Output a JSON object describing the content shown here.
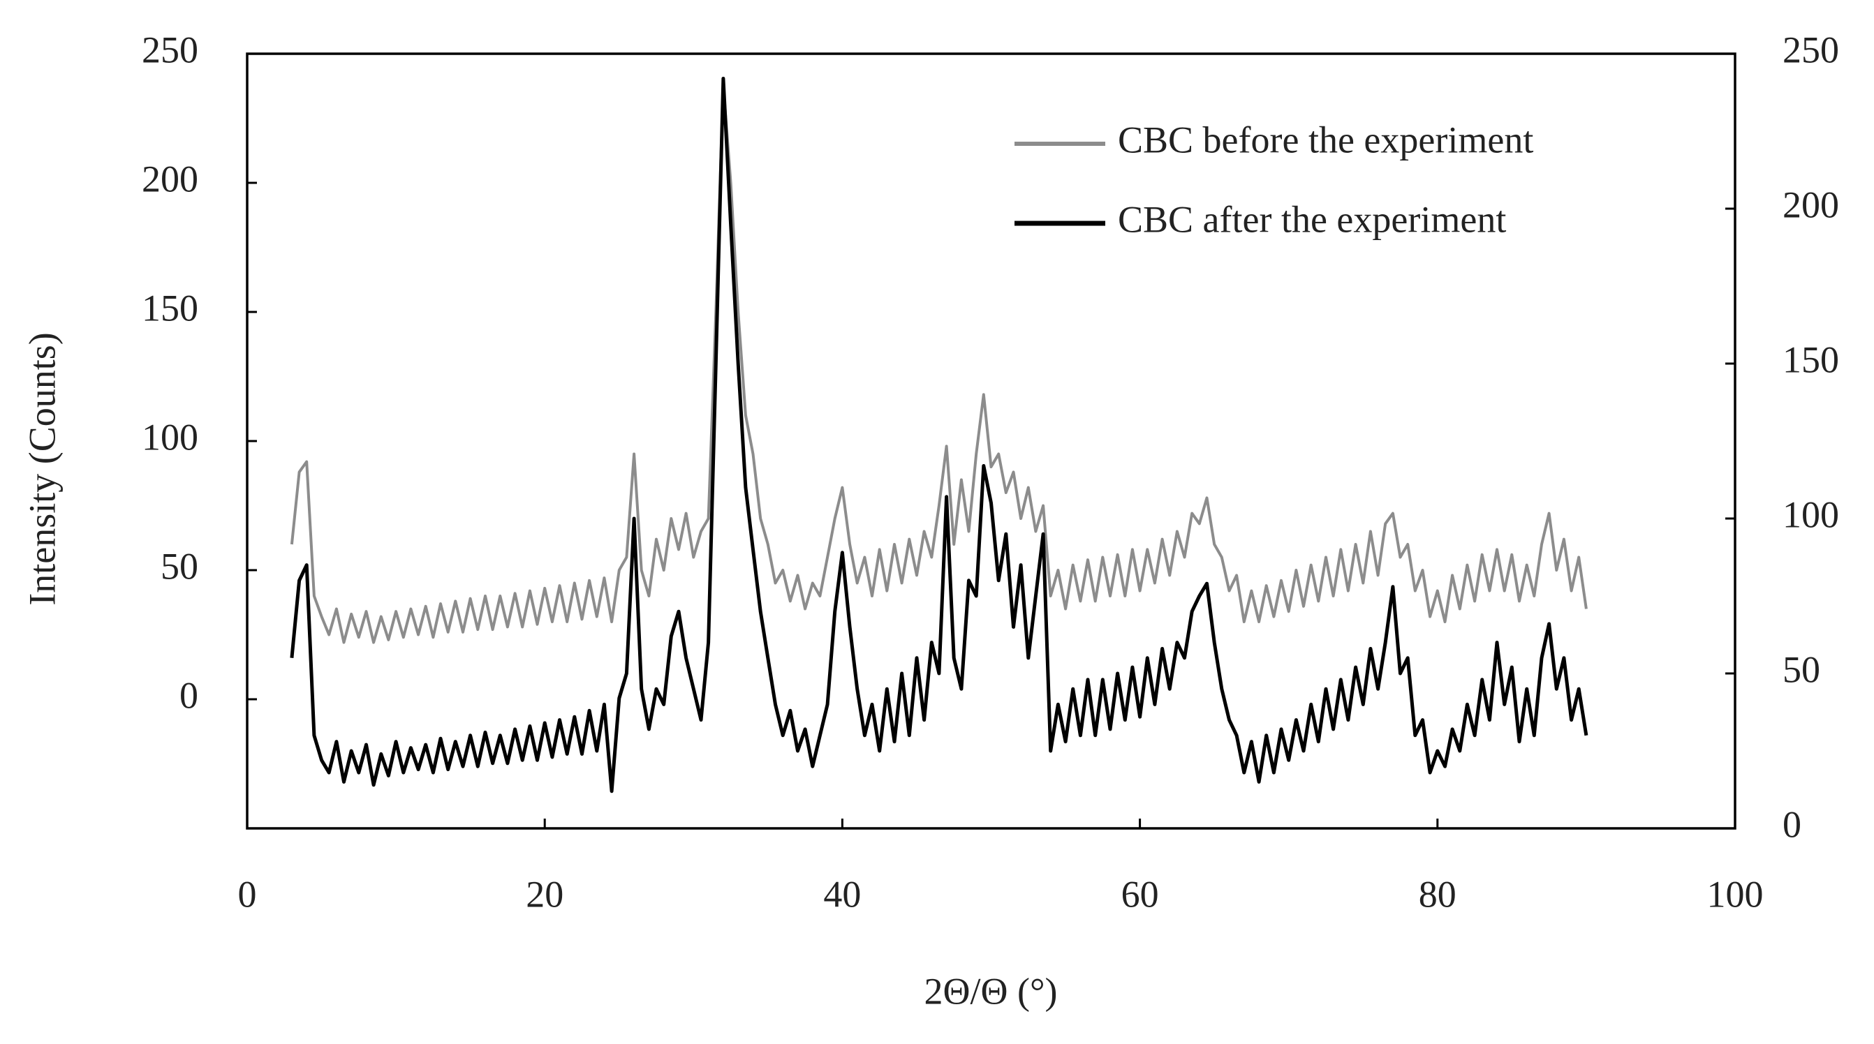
{
  "chart_data": {
    "type": "line",
    "xlabel": "2Θ/Θ (°)",
    "ylabel": "Intensity (Counts)",
    "x": [
      3,
      3.5,
      4,
      4.5,
      5,
      5.5,
      6,
      6.5,
      7,
      7.5,
      8,
      8.5,
      9,
      9.5,
      10,
      10.5,
      11,
      11.5,
      12,
      12.5,
      13,
      13.5,
      14,
      14.5,
      15,
      15.5,
      16,
      16.5,
      17,
      17.5,
      18,
      18.5,
      19,
      19.5,
      20,
      20.5,
      21,
      21.5,
      22,
      22.5,
      23,
      23.5,
      24,
      24.5,
      25,
      25.5,
      26,
      26.5,
      27,
      27.5,
      28,
      28.5,
      29,
      29.5,
      30,
      30.5,
      31,
      31.5,
      32,
      32.5,
      33,
      33.5,
      34,
      34.5,
      35,
      35.5,
      36,
      36.5,
      37,
      37.5,
      38,
      38.5,
      39,
      39.5,
      40,
      40.5,
      41,
      41.5,
      42,
      42.5,
      43,
      43.5,
      44,
      44.5,
      45,
      45.5,
      46,
      46.5,
      47,
      47.5,
      48,
      48.5,
      49,
      49.5,
      50,
      50.5,
      51,
      51.5,
      52,
      52.5,
      53,
      53.5,
      54,
      54.5,
      55,
      55.5,
      56,
      56.5,
      57,
      57.5,
      58,
      58.5,
      59,
      59.5,
      60,
      60.5,
      61,
      61.5,
      62,
      62.5,
      63,
      63.5,
      64,
      64.5,
      65,
      65.5,
      66,
      66.5,
      67,
      67.5,
      68,
      68.5,
      69,
      69.5,
      70,
      70.5,
      71,
      71.5,
      72,
      72.5,
      73,
      73.5,
      74,
      74.5,
      75,
      75.5,
      76,
      76.5,
      77,
      77.5,
      78,
      78.5,
      79,
      79.5,
      80,
      80.5,
      81,
      81.5,
      82,
      82.5,
      83,
      83.5,
      84,
      84.5,
      85,
      85.5,
      86,
      86.5,
      87,
      87.5,
      88,
      88.5,
      89,
      89.5,
      90
    ],
    "series": [
      {
        "name": "CBC before the experiment",
        "color": "#8c8c8c",
        "axis": "y",
        "values": [
          60,
          88,
          92,
          40,
          32,
          25,
          35,
          22,
          33,
          24,
          34,
          22,
          32,
          23,
          34,
          24,
          35,
          25,
          36,
          24,
          37,
          26,
          38,
          26,
          39,
          27,
          40,
          27,
          40,
          28,
          41,
          28,
          42,
          29,
          43,
          30,
          44,
          30,
          45,
          31,
          46,
          32,
          47,
          30,
          50,
          55,
          95,
          50,
          40,
          62,
          50,
          70,
          58,
          72,
          55,
          65,
          70,
          150,
          238,
          200,
          150,
          110,
          95,
          70,
          60,
          45,
          50,
          38,
          48,
          35,
          45,
          40,
          55,
          70,
          82,
          60,
          45,
          55,
          40,
          58,
          42,
          60,
          45,
          62,
          48,
          65,
          55,
          75,
          98,
          60,
          85,
          65,
          95,
          118,
          90,
          95,
          80,
          88,
          70,
          82,
          65,
          75,
          40,
          50,
          35,
          52,
          38,
          54,
          38,
          55,
          40,
          56,
          40,
          58,
          42,
          58,
          45,
          62,
          48,
          65,
          55,
          72,
          68,
          78,
          60,
          55,
          42,
          48,
          30,
          42,
          30,
          44,
          32,
          46,
          34,
          50,
          36,
          52,
          38,
          55,
          40,
          58,
          42,
          60,
          45,
          65,
          48,
          68,
          72,
          55,
          60,
          42,
          50,
          32,
          42,
          30,
          48,
          35,
          52,
          38,
          56,
          42,
          58,
          42,
          56,
          38,
          52,
          40,
          60,
          72,
          50,
          62,
          42,
          55,
          35
        ]
      },
      {
        "name": "CBC after the experiment",
        "color": "#000000",
        "axis": "y2",
        "values": [
          55,
          80,
          85,
          30,
          22,
          18,
          28,
          15,
          25,
          18,
          27,
          14,
          24,
          17,
          28,
          18,
          26,
          19,
          27,
          18,
          29,
          19,
          28,
          20,
          30,
          20,
          31,
          21,
          30,
          21,
          32,
          22,
          33,
          22,
          34,
          23,
          35,
          24,
          36,
          24,
          38,
          25,
          40,
          12,
          42,
          50,
          100,
          45,
          32,
          45,
          40,
          62,
          70,
          55,
          45,
          35,
          60,
          150,
          242,
          195,
          150,
          110,
          90,
          70,
          55,
          40,
          30,
          38,
          25,
          32,
          20,
          30,
          40,
          70,
          89,
          65,
          45,
          30,
          40,
          25,
          45,
          28,
          50,
          30,
          55,
          35,
          60,
          50,
          107,
          55,
          45,
          80,
          75,
          117,
          105,
          80,
          95,
          65,
          85,
          55,
          75,
          95,
          25,
          40,
          28,
          45,
          30,
          48,
          30,
          48,
          32,
          50,
          35,
          52,
          36,
          55,
          40,
          58,
          45,
          60,
          55,
          70,
          75,
          79,
          60,
          45,
          35,
          30,
          18,
          28,
          15,
          30,
          18,
          32,
          22,
          35,
          25,
          40,
          28,
          45,
          32,
          48,
          35,
          52,
          40,
          58,
          45,
          60,
          78,
          50,
          55,
          30,
          35,
          18,
          25,
          20,
          32,
          25,
          40,
          30,
          48,
          35,
          60,
          40,
          52,
          28,
          45,
          30,
          55,
          66,
          45,
          55,
          35,
          45,
          30
        ]
      }
    ],
    "xlim": [
      0,
      100
    ],
    "xticks": [
      0,
      20,
      40,
      60,
      80,
      100
    ],
    "ylim": [
      -50,
      250
    ],
    "yticks": [
      0,
      50,
      100,
      150,
      200,
      250
    ],
    "y2lim": [
      0,
      250
    ],
    "y2ticks": [
      0,
      50,
      100,
      150,
      200,
      250
    ],
    "legend": "upper right"
  }
}
